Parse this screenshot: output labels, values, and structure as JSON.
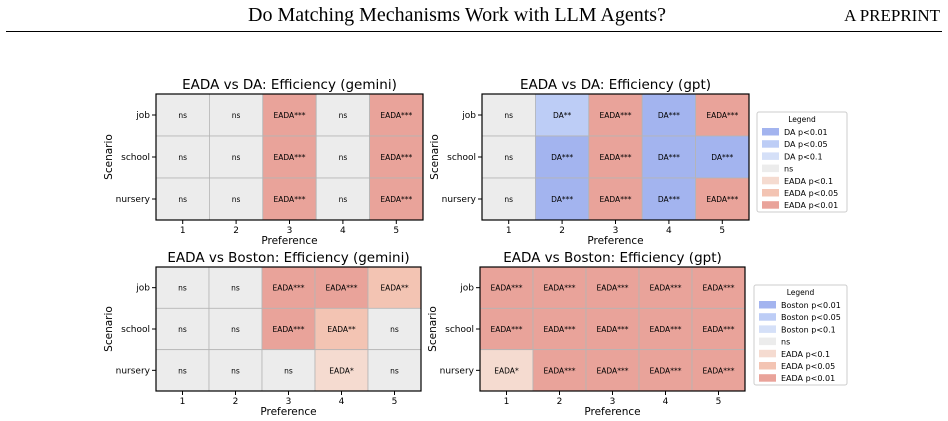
{
  "header": {
    "running_title": "Do Matching Mechanisms Work with LLM Agents?",
    "running_tag": "A PREPRINT"
  },
  "colors": {
    "DA p<0.01": "#a3b4ef",
    "DA p<0.05": "#bdcdf6",
    "DA p<0.1": "#d5e0f8",
    "Boston p<0.01": "#a3b4ef",
    "Boston p<0.05": "#bdcdf6",
    "Boston p<0.1": "#d5e0f8",
    "ns": "#ececec",
    "EADA p<0.1": "#f5dbd0",
    "EADA p<0.05": "#f3c4b3",
    "EADA p<0.01": "#e9a39a",
    "grid": "#b5b5b5"
  },
  "legends": [
    {
      "title": "Legend",
      "entries": [
        "DA p<0.01",
        "DA p<0.05",
        "DA p<0.1",
        "ns",
        "EADA p<0.1",
        "EADA p<0.05",
        "EADA p<0.01"
      ]
    },
    {
      "title": "Legend",
      "entries": [
        "Boston p<0.01",
        "Boston p<0.05",
        "Boston p<0.1",
        "ns",
        "EADA p<0.1",
        "EADA p<0.05",
        "EADA p<0.01"
      ]
    }
  ],
  "chart_data": [
    {
      "type": "heatmap",
      "title": "EADA vs DA: Efficiency (gemini)",
      "xlabel": "Preference",
      "ylabel": "Scenario",
      "x": [
        "1",
        "2",
        "3",
        "4",
        "5"
      ],
      "y": [
        "job",
        "school",
        "nursery"
      ],
      "cells": [
        [
          "ns",
          "ns",
          "EADA***",
          "ns",
          "EADA***"
        ],
        [
          "ns",
          "ns",
          "EADA***",
          "ns",
          "EADA***"
        ],
        [
          "ns",
          "ns",
          "EADA***",
          "ns",
          "EADA***"
        ]
      ],
      "categories": [
        [
          "ns",
          "ns",
          "EADA p<0.01",
          "ns",
          "EADA p<0.01"
        ],
        [
          "ns",
          "ns",
          "EADA p<0.01",
          "ns",
          "EADA p<0.01"
        ],
        [
          "ns",
          "ns",
          "EADA p<0.01",
          "ns",
          "EADA p<0.01"
        ]
      ]
    },
    {
      "type": "heatmap",
      "title": "EADA vs DA: Efficiency (gpt)",
      "xlabel": "Preference",
      "ylabel": "Scenario",
      "x": [
        "1",
        "2",
        "3",
        "4",
        "5"
      ],
      "y": [
        "job",
        "school",
        "nursery"
      ],
      "cells": [
        [
          "ns",
          "DA**",
          "EADA***",
          "DA***",
          "EADA***"
        ],
        [
          "ns",
          "DA***",
          "EADA***",
          "DA***",
          "DA***"
        ],
        [
          "ns",
          "DA***",
          "EADA***",
          "DA***",
          "EADA***"
        ]
      ],
      "categories": [
        [
          "ns",
          "DA p<0.05",
          "EADA p<0.01",
          "DA p<0.01",
          "EADA p<0.01"
        ],
        [
          "ns",
          "DA p<0.01",
          "EADA p<0.01",
          "DA p<0.01",
          "DA p<0.01"
        ],
        [
          "ns",
          "DA p<0.01",
          "EADA p<0.01",
          "DA p<0.01",
          "EADA p<0.01"
        ]
      ]
    },
    {
      "type": "heatmap",
      "title": "EADA vs Boston: Efficiency (gemini)",
      "xlabel": "Preference",
      "ylabel": "Scenario",
      "x": [
        "1",
        "2",
        "3",
        "4",
        "5"
      ],
      "y": [
        "job",
        "school",
        "nursery"
      ],
      "cells": [
        [
          "ns",
          "ns",
          "EADA***",
          "EADA***",
          "EADA**"
        ],
        [
          "ns",
          "ns",
          "EADA***",
          "EADA**",
          "ns"
        ],
        [
          "ns",
          "ns",
          "ns",
          "EADA*",
          "ns"
        ]
      ],
      "categories": [
        [
          "ns",
          "ns",
          "EADA p<0.01",
          "EADA p<0.01",
          "EADA p<0.05"
        ],
        [
          "ns",
          "ns",
          "EADA p<0.01",
          "EADA p<0.05",
          "ns"
        ],
        [
          "ns",
          "ns",
          "ns",
          "EADA p<0.1",
          "ns"
        ]
      ]
    },
    {
      "type": "heatmap",
      "title": "EADA vs Boston: Efficiency (gpt)",
      "xlabel": "Preference",
      "ylabel": "Scenario",
      "x": [
        "1",
        "2",
        "3",
        "4",
        "5"
      ],
      "y": [
        "job",
        "school",
        "nursery"
      ],
      "cells": [
        [
          "EADA***",
          "EADA***",
          "EADA***",
          "EADA***",
          "EADA***"
        ],
        [
          "EADA***",
          "EADA***",
          "EADA***",
          "EADA***",
          "EADA***"
        ],
        [
          "EADA*",
          "EADA***",
          "EADA***",
          "EADA***",
          "EADA***"
        ]
      ],
      "categories": [
        [
          "EADA p<0.01",
          "EADA p<0.01",
          "EADA p<0.01",
          "EADA p<0.01",
          "EADA p<0.01"
        ],
        [
          "EADA p<0.01",
          "EADA p<0.01",
          "EADA p<0.01",
          "EADA p<0.01",
          "EADA p<0.01"
        ],
        [
          "EADA p<0.1",
          "EADA p<0.01",
          "EADA p<0.01",
          "EADA p<0.01",
          "EADA p<0.01"
        ]
      ]
    }
  ]
}
